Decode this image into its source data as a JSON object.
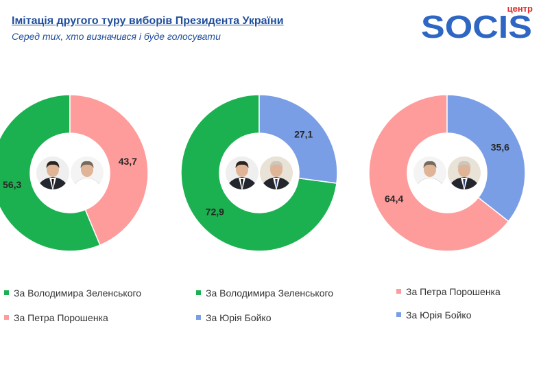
{
  "header": {
    "title": "Імітація другого туру виборів Президента України",
    "subtitle": "Серед тих, хто визначився  і буде голосувати"
  },
  "logo": {
    "top_text": "центр",
    "brand_text": "SOCIS"
  },
  "colors": {
    "zelensky": "#1bb150",
    "poroshenko": "#fe9b9b",
    "boyko": "#7a9ee6",
    "title": "#1f4e9c",
    "logo_blue": "#2e66c4",
    "logo_red": "#e32726"
  },
  "chart_data": [
    {
      "type": "pie",
      "donut": true,
      "labels": [
        "За Володимира Зеленського",
        "За Петра Порошенка"
      ],
      "values": [
        56.3,
        43.7
      ],
      "value_labels": [
        "56,3",
        "43,7"
      ],
      "colors": [
        "#1bb150",
        "#fe9b9b"
      ],
      "center_portraits": [
        "zelensky",
        "poroshenko"
      ],
      "legend": {
        "position": "bottom"
      }
    },
    {
      "type": "pie",
      "donut": true,
      "labels": [
        "За Володимира Зеленського",
        "За Юрія Бойко"
      ],
      "values": [
        72.9,
        27.1
      ],
      "value_labels": [
        "72,9",
        "27,1"
      ],
      "colors": [
        "#1bb150",
        "#7a9ee6"
      ],
      "center_portraits": [
        "zelensky",
        "boyko"
      ],
      "legend": {
        "position": "bottom"
      }
    },
    {
      "type": "pie",
      "donut": true,
      "labels": [
        "За Петра Порошенка",
        "За Юрія Бойко"
      ],
      "values": [
        64.4,
        35.6
      ],
      "value_labels": [
        "64,4",
        "35,6"
      ],
      "colors": [
        "#fe9b9b",
        "#7a9ee6"
      ],
      "center_portraits": [
        "poroshenko",
        "boyko"
      ],
      "legend": {
        "position": "bottom"
      }
    }
  ]
}
